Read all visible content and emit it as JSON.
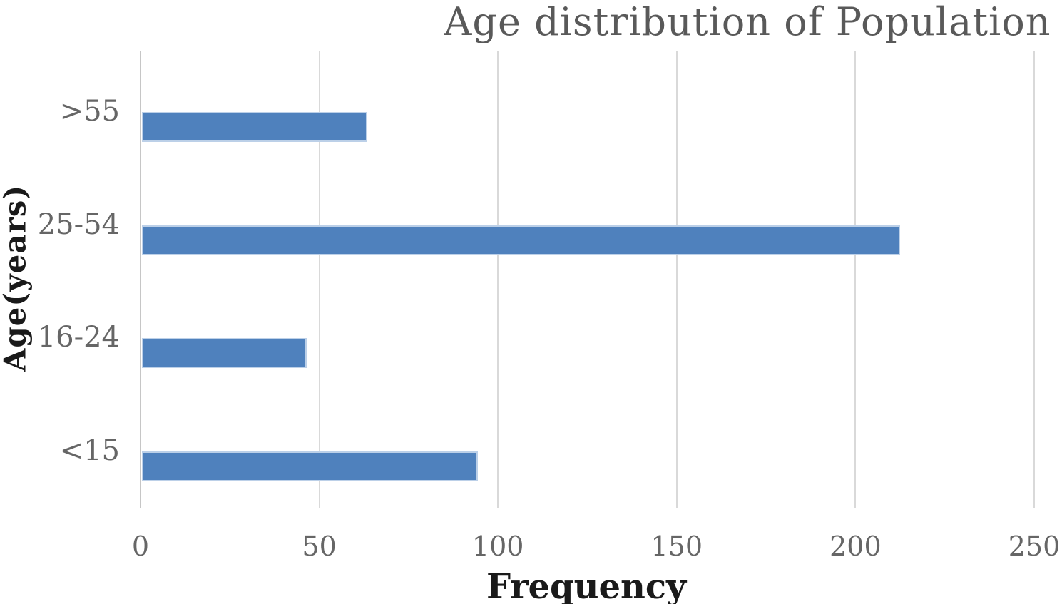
{
  "chart_data": {
    "type": "bar",
    "orientation": "horizontal",
    "title": "Age distribution of Population",
    "xlabel": "Frequency",
    "ylabel": "Age(years)",
    "categories": [
      ">55",
      "25-54",
      "16-24",
      "<15"
    ],
    "values": [
      63,
      212,
      46,
      94
    ],
    "xlim": [
      0,
      250
    ],
    "xticks": [
      0,
      50,
      100,
      150,
      200,
      250
    ],
    "grid": true,
    "legend": false,
    "bar_color": "#4f81bd",
    "bar_edge_color": "#bcd0e8",
    "gridline_color": "#d9d9d9",
    "axis_line_color": "#c6c6c6",
    "title_color": "#595959",
    "tick_label_color": "#666666",
    "axis_title_color": "#1a1a1a",
    "background_color": "#ffffff"
  }
}
